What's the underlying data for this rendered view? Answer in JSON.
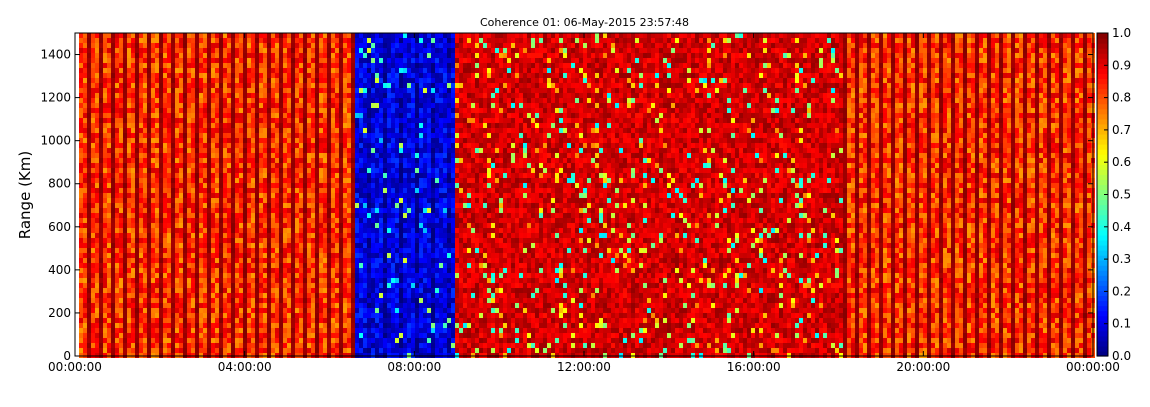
{
  "chart_data": {
    "type": "heatmap",
    "title": "Coherence 01: 06-May-2015 23:57:48",
    "xlabel": "",
    "ylabel": "Range (Km)",
    "x_ticks": [
      "00:00:00",
      "04:00:00",
      "08:00:00",
      "12:00:00",
      "16:00:00",
      "20:00:00",
      "00:00:00"
    ],
    "x_range_hours": [
      0,
      24
    ],
    "y_ticks": [
      "0",
      "200",
      "400",
      "600",
      "800",
      "1000",
      "1200",
      "1400"
    ],
    "ylim": [
      0,
      1500
    ],
    "colorbar": {
      "ticks": [
        "0.0",
        "0.1",
        "0.2",
        "0.3",
        "0.4",
        "0.5",
        "0.6",
        "0.7",
        "0.8",
        "0.9",
        "1.0"
      ],
      "range": [
        0,
        1
      ],
      "colormap": "jet"
    },
    "regions": [
      {
        "x_start_hours": 0.1,
        "x_end_hours": 6.6,
        "typical_coherence": 0.85,
        "note": "striped columns"
      },
      {
        "x_start_hours": 6.6,
        "x_end_hours": 9.0,
        "typical_coherence": 0.1,
        "note": "low coherence band"
      },
      {
        "x_start_hours": 9.0,
        "x_end_hours": 18.1,
        "typical_coherence": 0.85,
        "note": "speckled"
      },
      {
        "x_start_hours": 18.1,
        "x_end_hours": 24.0,
        "typical_coherence": 0.85,
        "note": "striped columns"
      }
    ],
    "grid": false,
    "legend": "colorbar-right"
  }
}
